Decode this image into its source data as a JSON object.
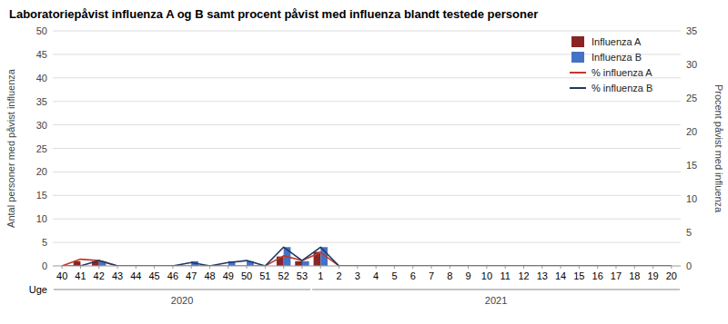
{
  "chart_data": {
    "type": "bar",
    "title": "Laboratoriepåvist influenza A og B samt procent påvist med influenza blandt testede personer",
    "xlabel": "Uge",
    "ylabel": "Antal personer med påvist influenza",
    "y2label": "Procent påvist med influenza",
    "categories": [
      "40",
      "41",
      "42",
      "43",
      "44",
      "45",
      "46",
      "47",
      "48",
      "49",
      "50",
      "51",
      "52",
      "53",
      "1",
      "2",
      "3",
      "4",
      "5",
      "6",
      "7",
      "8",
      "9",
      "10",
      "11",
      "12",
      "13",
      "14",
      "15",
      "16",
      "17",
      "18",
      "19",
      "20"
    ],
    "annotations": [
      {
        "text": "2020",
        "start": 0,
        "end": 13
      },
      {
        "text": "2021",
        "start": 14,
        "end": 33
      }
    ],
    "series": [
      {
        "name": "Influenza A",
        "type": "bar",
        "color": "#8B2424",
        "values": [
          0,
          1,
          1,
          0,
          0,
          0,
          0,
          0,
          0,
          0,
          0,
          0,
          2,
          1,
          3,
          0,
          0,
          0,
          0,
          0,
          0,
          0,
          0,
          0,
          0,
          0,
          0,
          0,
          0,
          0,
          0,
          0,
          0,
          0
        ]
      },
      {
        "name": "Influenza B",
        "type": "bar",
        "color": "#4472C4",
        "values": [
          0,
          0,
          1,
          0,
          0,
          0,
          0,
          1,
          0,
          1,
          1,
          0,
          4,
          1,
          4,
          0,
          0,
          0,
          0,
          0,
          0,
          0,
          0,
          0,
          0,
          0,
          0,
          0,
          0,
          0,
          0,
          0,
          0,
          0
        ]
      },
      {
        "name": "% influenza A",
        "type": "line",
        "axis": "y2",
        "color": "#C0392B",
        "values": [
          0,
          1.0,
          0.8,
          0,
          0,
          0,
          0,
          0,
          0,
          0,
          0,
          0,
          1.5,
          0.8,
          2.0,
          0,
          0,
          0,
          0,
          0,
          0,
          0,
          0,
          0,
          0,
          0,
          0,
          0,
          0,
          0,
          0,
          0,
          0,
          0
        ]
      },
      {
        "name": "% influenza B",
        "type": "line",
        "axis": "y2",
        "color": "#1F3864",
        "values": [
          0,
          0,
          0.8,
          0,
          0,
          0,
          0,
          0.5,
          0,
          0.5,
          0.8,
          0,
          2.8,
          0.8,
          2.8,
          0,
          0,
          0,
          0,
          0,
          0,
          0,
          0,
          0,
          0,
          0,
          0,
          0,
          0,
          0,
          0,
          0,
          0,
          0
        ]
      }
    ],
    "ylim": [
      0,
      50
    ],
    "yticks": [
      0,
      5,
      10,
      15,
      20,
      25,
      30,
      35,
      40,
      45,
      50
    ],
    "y2lim": [
      0,
      35
    ],
    "y2ticks": [
      0,
      5,
      10,
      15,
      20,
      25,
      30,
      35
    ],
    "grid": true,
    "legend": "upper right"
  }
}
